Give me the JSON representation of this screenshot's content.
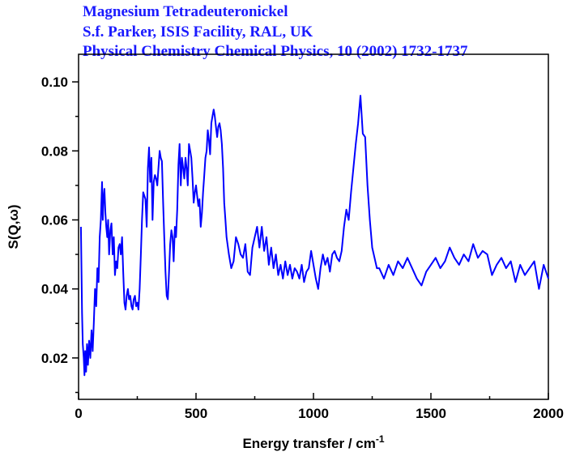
{
  "chart_data": {
    "type": "line",
    "title": "",
    "annotations": [
      "Magnesium Tetradeuteronickel",
      "S.f. Parker, ISIS Facility, RAL, UK",
      "Physical Chemistry Chemical Physics, 10 (2002) 1732-1737"
    ],
    "xlabel": "Energy transfer / cm",
    "xlabel_superscript": "-1",
    "ylabel": "S(Q,ω)",
    "xlim": [
      0,
      2000
    ],
    "ylim": [
      0.008,
      0.108
    ],
    "xticks": [
      0,
      500,
      1000,
      1500,
      2000
    ],
    "yticks": [
      0.02,
      0.04,
      0.06,
      0.08,
      0.1
    ],
    "xtick_labels": [
      "0",
      "500",
      "1000",
      "1500",
      "2000"
    ],
    "ytick_labels": [
      "0.02",
      "0.04",
      "0.06",
      "0.08",
      "0.10"
    ],
    "grid": false,
    "line_color": "#0000ff",
    "annotation_color": "#1a1aff",
    "series": [
      {
        "x": [
          10,
          15,
          18,
          22,
          25,
          28,
          32,
          36,
          40,
          45,
          50,
          55,
          60,
          65,
          70,
          75,
          80,
          85,
          90,
          95,
          100,
          103,
          106,
          110,
          114,
          118,
          122,
          126,
          130,
          135,
          140,
          145,
          150,
          155,
          160,
          165,
          170,
          175,
          180,
          185,
          190,
          195,
          200,
          205,
          210,
          215,
          220,
          225,
          230,
          235,
          240,
          245,
          250,
          255,
          260,
          265,
          270,
          275,
          280,
          285,
          290,
          295,
          300,
          305,
          310,
          315,
          320,
          325,
          330,
          335,
          340,
          345,
          350,
          355,
          360,
          365,
          370,
          375,
          380,
          385,
          390,
          395,
          400,
          405,
          410,
          415,
          420,
          425,
          430,
          435,
          440,
          445,
          450,
          455,
          460,
          465,
          470,
          475,
          480,
          485,
          490,
          495,
          500,
          505,
          510,
          515,
          520,
          525,
          530,
          535,
          540,
          545,
          550,
          555,
          560,
          565,
          570,
          575,
          580,
          585,
          590,
          595,
          600,
          605,
          610,
          615,
          620,
          625,
          630,
          640,
          650,
          660,
          670,
          680,
          690,
          700,
          710,
          720,
          730,
          740,
          750,
          760,
          770,
          780,
          790,
          800,
          810,
          820,
          830,
          840,
          850,
          860,
          870,
          880,
          890,
          900,
          910,
          920,
          930,
          940,
          950,
          960,
          970,
          980,
          990,
          1000,
          1010,
          1020,
          1030,
          1040,
          1050,
          1060,
          1070,
          1080,
          1090,
          1100,
          1110,
          1120,
          1130,
          1140,
          1150,
          1160,
          1170,
          1180,
          1190,
          1200,
          1210,
          1220,
          1230,
          1240,
          1250,
          1260,
          1270,
          1280,
          1300,
          1320,
          1340,
          1360,
          1380,
          1400,
          1420,
          1440,
          1460,
          1480,
          1500,
          1520,
          1540,
          1560,
          1580,
          1600,
          1620,
          1640,
          1660,
          1680,
          1700,
          1720,
          1740,
          1760,
          1780,
          1800,
          1820,
          1840,
          1860,
          1880,
          1900,
          1920,
          1940,
          1960,
          1980,
          2000
        ],
        "y": [
          0.058,
          0.033,
          0.024,
          0.02,
          0.015,
          0.022,
          0.016,
          0.024,
          0.018,
          0.025,
          0.02,
          0.028,
          0.022,
          0.03,
          0.04,
          0.035,
          0.046,
          0.042,
          0.055,
          0.06,
          0.071,
          0.06,
          0.066,
          0.069,
          0.062,
          0.058,
          0.055,
          0.06,
          0.05,
          0.057,
          0.059,
          0.05,
          0.055,
          0.044,
          0.048,
          0.046,
          0.052,
          0.053,
          0.05,
          0.055,
          0.045,
          0.036,
          0.034,
          0.038,
          0.04,
          0.037,
          0.038,
          0.035,
          0.034,
          0.037,
          0.038,
          0.035,
          0.036,
          0.034,
          0.04,
          0.05,
          0.06,
          0.068,
          0.067,
          0.066,
          0.058,
          0.075,
          0.081,
          0.071,
          0.078,
          0.06,
          0.071,
          0.073,
          0.072,
          0.07,
          0.075,
          0.08,
          0.078,
          0.077,
          0.065,
          0.055,
          0.045,
          0.038,
          0.037,
          0.045,
          0.053,
          0.057,
          0.055,
          0.048,
          0.058,
          0.055,
          0.063,
          0.076,
          0.082,
          0.07,
          0.078,
          0.075,
          0.072,
          0.078,
          0.075,
          0.07,
          0.082,
          0.08,
          0.078,
          0.072,
          0.065,
          0.068,
          0.07,
          0.067,
          0.064,
          0.066,
          0.058,
          0.062,
          0.068,
          0.073,
          0.078,
          0.08,
          0.086,
          0.083,
          0.079,
          0.088,
          0.09,
          0.092,
          0.09,
          0.087,
          0.084,
          0.087,
          0.088,
          0.086,
          0.082,
          0.075,
          0.065,
          0.06,
          0.055,
          0.05,
          0.046,
          0.048,
          0.055,
          0.053,
          0.05,
          0.049,
          0.053,
          0.045,
          0.044,
          0.052,
          0.055,
          0.058,
          0.052,
          0.058,
          0.051,
          0.055,
          0.047,
          0.052,
          0.046,
          0.05,
          0.044,
          0.047,
          0.043,
          0.048,
          0.044,
          0.047,
          0.043,
          0.046,
          0.045,
          0.043,
          0.047,
          0.042,
          0.045,
          0.046,
          0.051,
          0.047,
          0.043,
          0.04,
          0.046,
          0.05,
          0.047,
          0.049,
          0.045,
          0.05,
          0.051,
          0.049,
          0.048,
          0.051,
          0.058,
          0.063,
          0.06,
          0.068,
          0.075,
          0.082,
          0.088,
          0.096,
          0.085,
          0.084,
          0.07,
          0.06,
          0.052,
          0.049,
          0.046,
          0.046,
          0.043,
          0.047,
          0.044,
          0.048,
          0.046,
          0.049,
          0.046,
          0.043,
          0.041,
          0.045,
          0.047,
          0.049,
          0.046,
          0.048,
          0.052,
          0.049,
          0.047,
          0.05,
          0.048,
          0.053,
          0.049,
          0.051,
          0.05,
          0.044,
          0.047,
          0.049,
          0.046,
          0.048,
          0.042,
          0.047,
          0.044,
          0.046,
          0.048,
          0.04,
          0.047,
          0.043
        ]
      }
    ]
  }
}
